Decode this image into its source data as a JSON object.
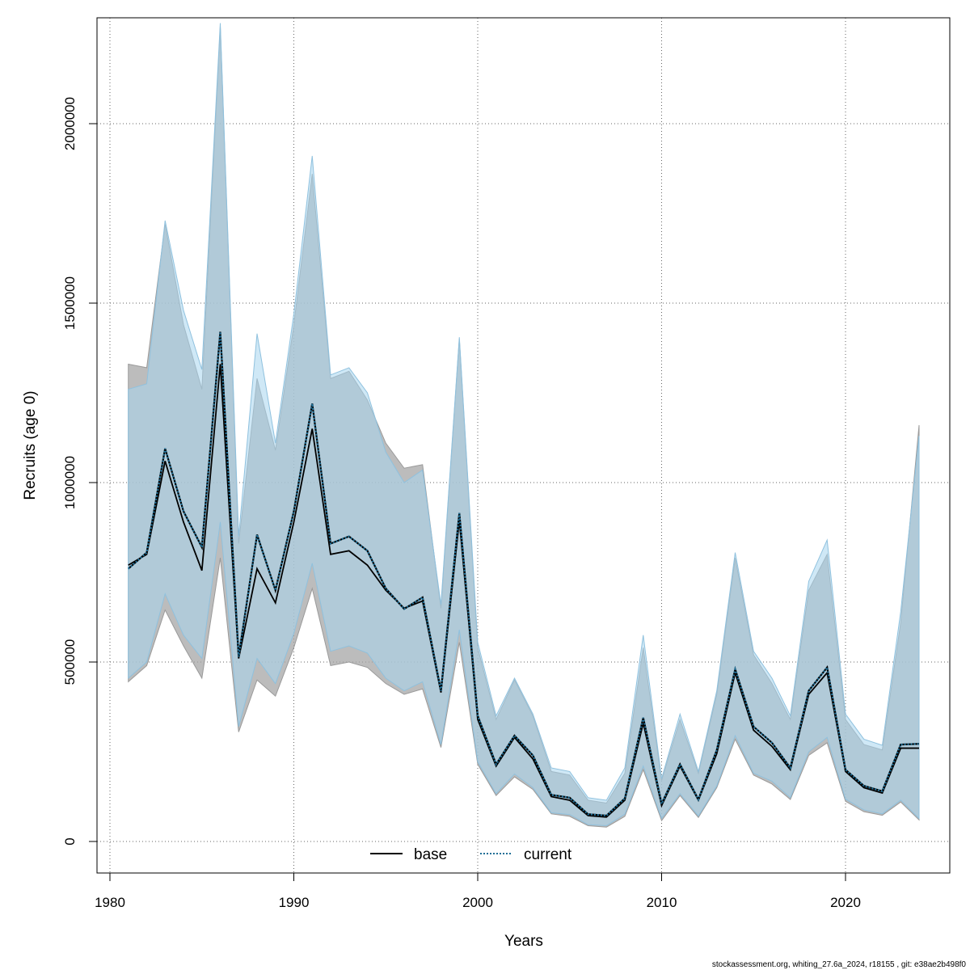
{
  "chart_data": {
    "type": "area",
    "xlabel": "Years",
    "ylabel": "Recruits (age 0)",
    "xlim": [
      1980,
      2025
    ],
    "ylim": [
      0,
      2250000
    ],
    "x_ticks": [
      1980,
      1990,
      2000,
      2010,
      2020
    ],
    "y_ticks": [
      0,
      500000,
      1000000,
      1500000,
      2000000
    ],
    "x_tick_labels": [
      "1980",
      "1990",
      "2000",
      "2010",
      "2020"
    ],
    "y_tick_labels": [
      "0",
      "500000",
      "1000000",
      "1500000",
      "2000000"
    ],
    "grid": true,
    "legend_position": "bottom-center",
    "x": [
      1981,
      1982,
      1983,
      1984,
      1985,
      1986,
      1987,
      1988,
      1989,
      1990,
      1991,
      1992,
      1993,
      1994,
      1995,
      1996,
      1997,
      1998,
      1999,
      2000,
      2001,
      2002,
      2003,
      2004,
      2005,
      2006,
      2007,
      2008,
      2009,
      2010,
      2011,
      2012,
      2013,
      2014,
      2015,
      2016,
      2017,
      2018,
      2019,
      2020,
      2021,
      2022,
      2023,
      2024
    ],
    "series": [
      {
        "name": "base",
        "line_color": "#000000",
        "line_style": "solid",
        "band_color": "#a6a6a6",
        "values": [
          770000,
          800000,
          1060000,
          890000,
          755000,
          1330000,
          510000,
          760000,
          665000,
          890000,
          1150000,
          800000,
          810000,
          770000,
          700000,
          650000,
          670000,
          415000,
          895000,
          340000,
          210000,
          290000,
          230000,
          125000,
          115000,
          72000,
          68000,
          115000,
          330000,
          100000,
          210000,
          115000,
          245000,
          470000,
          310000,
          265000,
          200000,
          410000,
          470000,
          195000,
          150000,
          135000,
          260000,
          260000
        ],
        "lower": [
          445000,
          490000,
          645000,
          545000,
          455000,
          790000,
          305000,
          450000,
          405000,
          540000,
          705000,
          490000,
          500000,
          485000,
          440000,
          410000,
          425000,
          262000,
          555000,
          215000,
          128000,
          180000,
          145000,
          77000,
          70000,
          44000,
          40000,
          70000,
          200000,
          58000,
          128000,
          67000,
          150000,
          285000,
          185000,
          160000,
          117000,
          240000,
          275000,
          112000,
          83000,
          73000,
          110000,
          60000
        ],
        "upper": [
          1330000,
          1320000,
          1720000,
          1440000,
          1260000,
          2270000,
          830000,
          1290000,
          1090000,
          1440000,
          1860000,
          1290000,
          1310000,
          1230000,
          1110000,
          1040000,
          1050000,
          650000,
          1400000,
          540000,
          340000,
          450000,
          350000,
          195000,
          185000,
          115000,
          107000,
          190000,
          540000,
          170000,
          340000,
          190000,
          410000,
          790000,
          520000,
          440000,
          340000,
          700000,
          800000,
          340000,
          270000,
          255000,
          610000,
          1160000
        ]
      },
      {
        "name": "current",
        "line_color": "#1f6e96",
        "line_style": "dotted",
        "band_color": "#a8d5ee",
        "values": [
          760000,
          805000,
          1095000,
          920000,
          820000,
          1420000,
          515000,
          855000,
          700000,
          920000,
          1220000,
          830000,
          850000,
          810000,
          705000,
          648000,
          680000,
          420000,
          915000,
          350000,
          215000,
          295000,
          240000,
          130000,
          122000,
          76000,
          72000,
          120000,
          345000,
          105000,
          215000,
          117000,
          255000,
          480000,
          320000,
          275000,
          205000,
          420000,
          485000,
          200000,
          155000,
          140000,
          270000,
          272000
        ],
        "lower": [
          455000,
          500000,
          690000,
          575000,
          510000,
          890000,
          320000,
          510000,
          440000,
          580000,
          775000,
          530000,
          545000,
          525000,
          455000,
          420000,
          445000,
          270000,
          590000,
          222000,
          133000,
          188000,
          150000,
          80000,
          75000,
          47000,
          44000,
          76000,
          210000,
          64000,
          133000,
          71000,
          155000,
          295000,
          190000,
          168000,
          122000,
          250000,
          290000,
          118000,
          88000,
          77000,
          115000,
          64000
        ],
        "upper": [
          1260000,
          1275000,
          1730000,
          1480000,
          1315000,
          2280000,
          850000,
          1415000,
          1110000,
          1470000,
          1910000,
          1300000,
          1320000,
          1250000,
          1085000,
          1000000,
          1035000,
          660000,
          1405000,
          555000,
          350000,
          455000,
          355000,
          205000,
          195000,
          122000,
          115000,
          205000,
          575000,
          175000,
          355000,
          195000,
          420000,
          805000,
          530000,
          455000,
          350000,
          725000,
          840000,
          355000,
          285000,
          268000,
          640000,
          1130000
        ]
      }
    ],
    "footer": "stockassessment.org, whiting_27.6a_2024, r18155 , git: e38ae2b498f0"
  }
}
